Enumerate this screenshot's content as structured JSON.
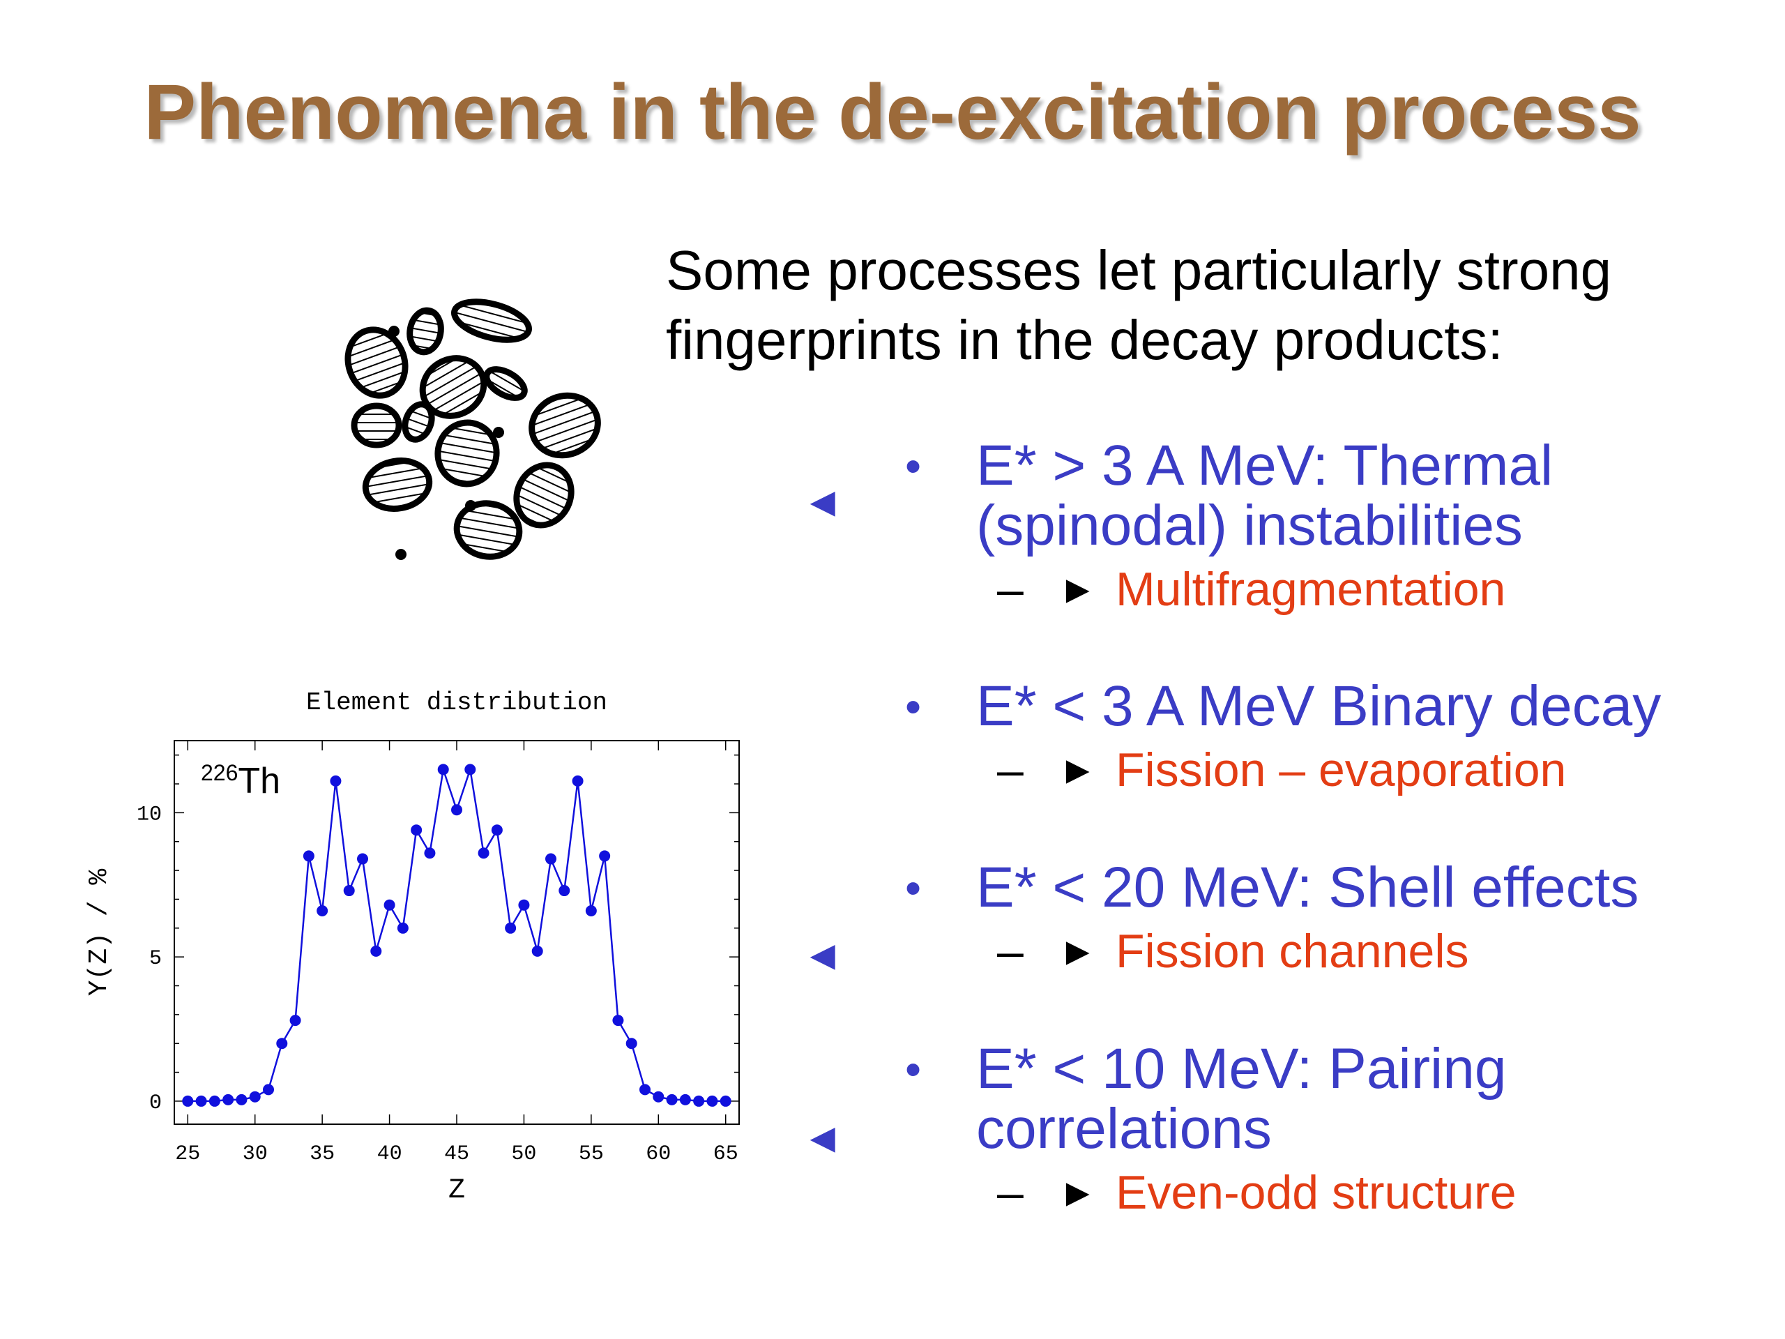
{
  "slide": {
    "title": "Phenomena in the de-excitation process",
    "intro_lines": [
      "Some processes let particularly strong",
      "fingerprints in the decay products:"
    ],
    "bullet_glyph": "•",
    "sub_dash": "–",
    "sub_marker": "►",
    "side_arrow": "◄",
    "items": [
      {
        "main_lines": [
          "E* > 3 A MeV: Thermal",
          "(spinodal) instabilities"
        ],
        "sub": "Multifragmentation"
      },
      {
        "main_lines": [
          "E* < 3 A MeV Binary decay"
        ],
        "sub": "Fission – evaporation"
      },
      {
        "main_lines": [
          "E* < 20 MeV: Shell effects"
        ],
        "sub": "Fission channels"
      },
      {
        "main_lines": [
          "E* < 10 MeV: Pairing",
          "correlations"
        ],
        "sub": "Even-odd structure"
      }
    ]
  },
  "illustration": {
    "icon": "multifragmentation-pattern-icon"
  },
  "colors": {
    "title": "#9c6a3a",
    "accent_blue": "#3a3cc5",
    "accent_red": "#e33d14",
    "series": "#1010dd"
  },
  "chart_data": {
    "type": "line",
    "title": "Element distribution",
    "annotation_mass": "226",
    "annotation_element": "Th",
    "xlabel": "Z",
    "ylabel": "Y(Z)  /  %",
    "xlim": [
      24,
      66
    ],
    "ylim": [
      -0.8,
      12.5
    ],
    "xticks": [
      25,
      30,
      35,
      40,
      45,
      50,
      55,
      60,
      65
    ],
    "yticks": [
      0,
      5,
      10
    ],
    "grid": false,
    "series": [
      {
        "x": [
          25,
          26,
          27,
          28,
          29,
          30,
          31,
          32,
          33,
          34,
          35,
          36,
          37,
          38,
          39,
          40,
          41,
          42,
          43,
          44,
          45,
          46,
          47,
          48,
          49,
          50,
          51,
          52,
          53,
          54,
          55,
          56,
          57,
          58,
          59,
          60,
          61,
          62,
          63,
          64,
          65
        ],
        "values": [
          0,
          0,
          0,
          0.05,
          0.05,
          0.15,
          0.4,
          2.0,
          2.8,
          8.5,
          6.6,
          11.1,
          7.3,
          8.4,
          5.2,
          6.8,
          6.0,
          9.4,
          8.6,
          11.5,
          10.1,
          11.5,
          8.6,
          9.4,
          6.0,
          6.8,
          5.2,
          8.4,
          7.3,
          11.1,
          6.6,
          8.5,
          2.8,
          2.0,
          0.4,
          0.15,
          0.05,
          0.05,
          0,
          0,
          0
        ]
      }
    ]
  }
}
